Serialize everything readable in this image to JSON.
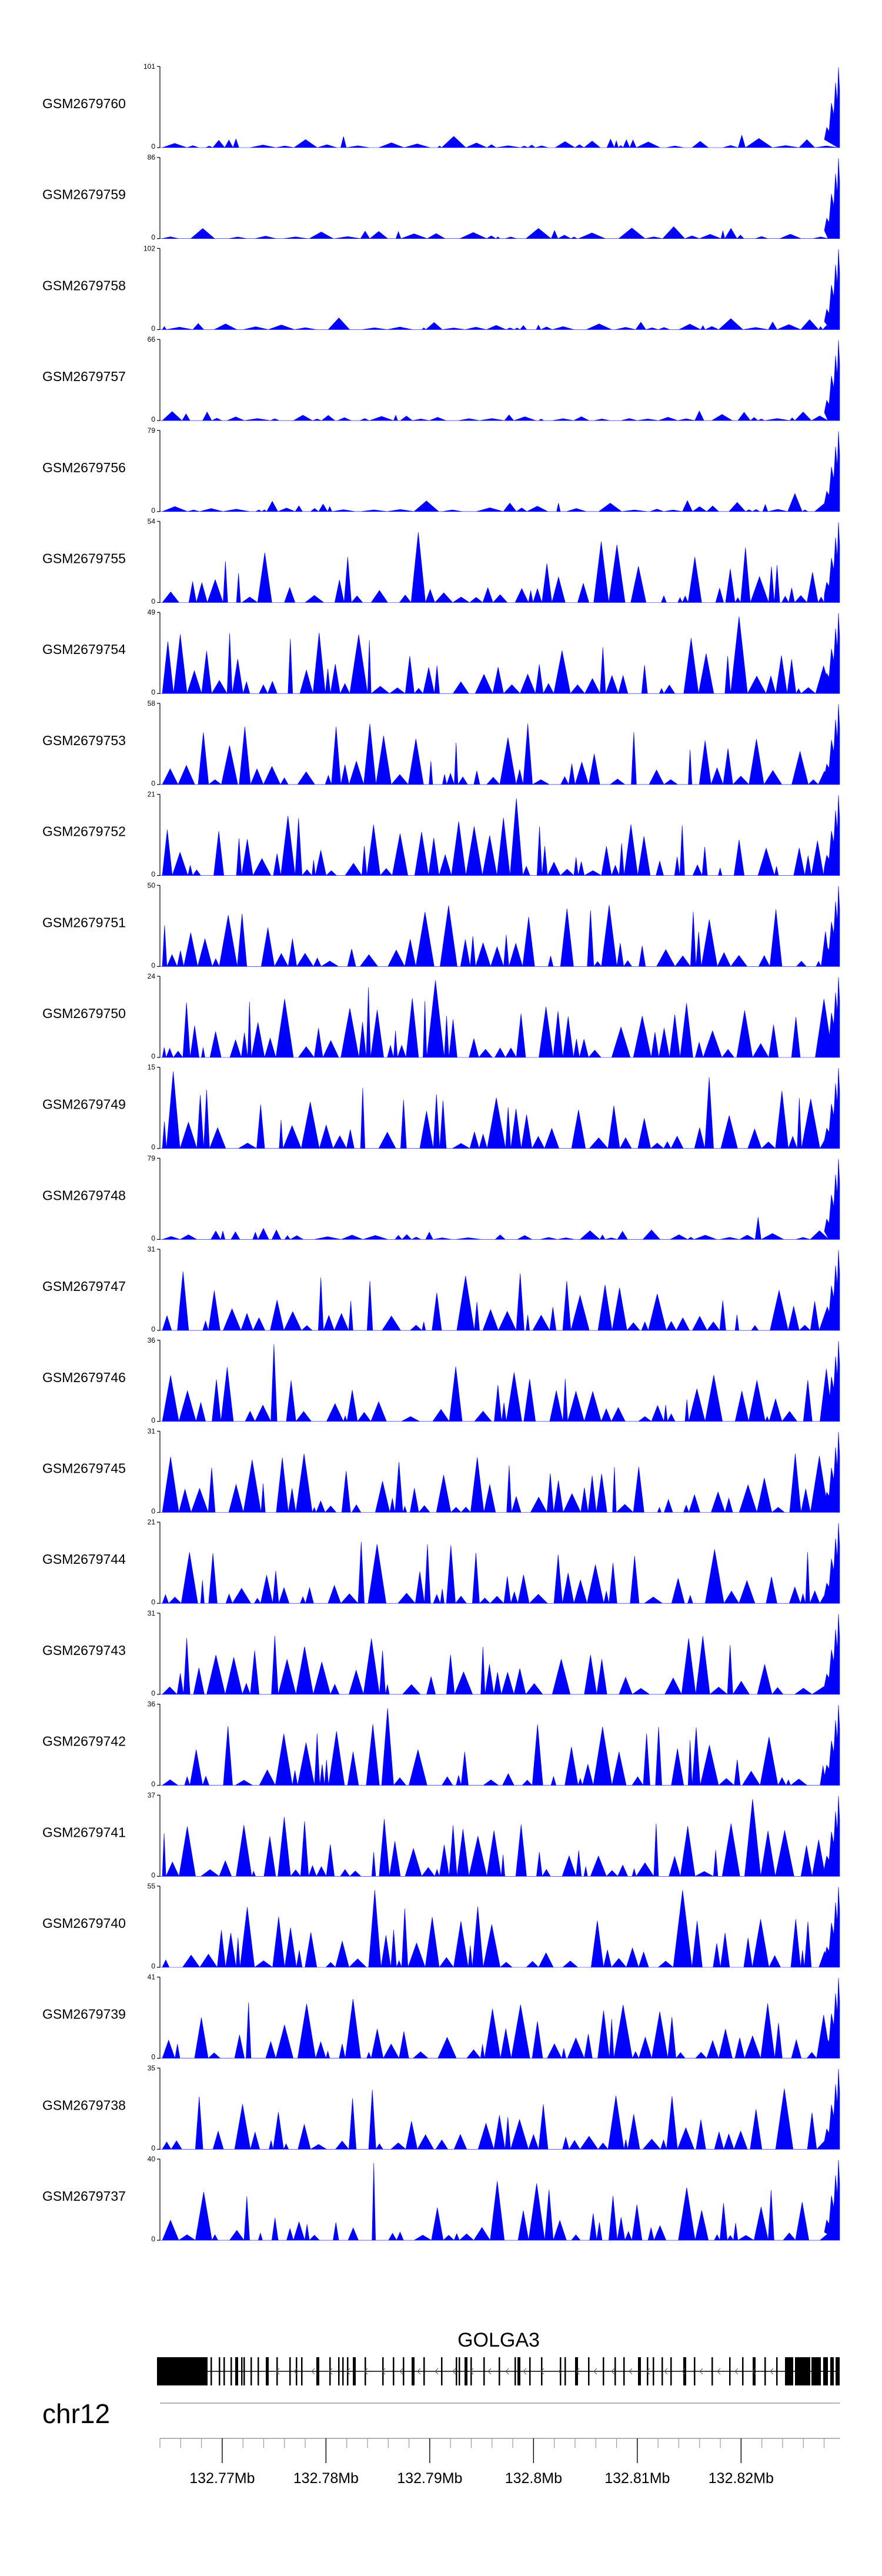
{
  "chart_data": {
    "type": "area",
    "title": "",
    "chromosome": "chr12",
    "gene": "GOLGA3",
    "x_axis": {
      "range_mb": [
        132.764,
        132.8295
      ],
      "tick_labels": [
        "132.77Mb",
        "132.78Mb",
        "132.79Mb",
        "132.8Mb",
        "132.81Mb",
        "132.82Mb"
      ],
      "tick_values_mb": [
        132.77,
        132.78,
        132.79,
        132.8,
        132.81,
        132.82
      ],
      "minor_tick_step_mb": 0.002
    },
    "colors": {
      "signal": "#0000ff",
      "gene_model": "#000000",
      "axis": "#000000",
      "guide": "#999999"
    },
    "tracks": [
      {
        "name": "GSM2679760",
        "ymin_label": "0",
        "ymax_label": "101",
        "ymax": 101
      },
      {
        "name": "GSM2679759",
        "ymin_label": "0",
        "ymax_label": "86",
        "ymax": 86
      },
      {
        "name": "GSM2679758",
        "ymin_label": "0",
        "ymax_label": "102",
        "ymax": 102
      },
      {
        "name": "GSM2679757",
        "ymin_label": "0",
        "ymax_label": "66",
        "ymax": 66
      },
      {
        "name": "GSM2679756",
        "ymin_label": "0",
        "ymax_label": "79",
        "ymax": 79
      },
      {
        "name": "GSM2679755",
        "ymin_label": "0",
        "ymax_label": "54",
        "ymax": 54
      },
      {
        "name": "GSM2679754",
        "ymin_label": "0",
        "ymax_label": "49",
        "ymax": 49
      },
      {
        "name": "GSM2679753",
        "ymin_label": "0",
        "ymax_label": "58",
        "ymax": 58
      },
      {
        "name": "GSM2679752",
        "ymin_label": "0",
        "ymax_label": "21",
        "ymax": 21
      },
      {
        "name": "GSM2679751",
        "ymin_label": "0",
        "ymax_label": "50",
        "ymax": 50
      },
      {
        "name": "GSM2679750",
        "ymin_label": "0",
        "ymax_label": "24",
        "ymax": 24
      },
      {
        "name": "GSM2679749",
        "ymin_label": "0",
        "ymax_label": "15",
        "ymax": 15
      },
      {
        "name": "GSM2679748",
        "ymin_label": "0",
        "ymax_label": "79",
        "ymax": 79
      },
      {
        "name": "GSM2679747",
        "ymin_label": "0",
        "ymax_label": "31",
        "ymax": 31
      },
      {
        "name": "GSM2679746",
        "ymin_label": "0",
        "ymax_label": "36",
        "ymax": 36
      },
      {
        "name": "GSM2679745",
        "ymin_label": "0",
        "ymax_label": "31",
        "ymax": 31
      },
      {
        "name": "GSM2679744",
        "ymin_label": "0",
        "ymax_label": "21",
        "ymax": 21
      },
      {
        "name": "GSM2679743",
        "ymin_label": "0",
        "ymax_label": "31",
        "ymax": 31
      },
      {
        "name": "GSM2679742",
        "ymin_label": "0",
        "ymax_label": "36",
        "ymax": 36
      },
      {
        "name": "GSM2679741",
        "ymin_label": "0",
        "ymax_label": "37",
        "ymax": 37
      },
      {
        "name": "GSM2679740",
        "ymin_label": "0",
        "ymax_label": "55",
        "ymax": 55
      },
      {
        "name": "GSM2679739",
        "ymin_label": "0",
        "ymax_label": "41",
        "ymax": 41
      },
      {
        "name": "GSM2679738",
        "ymin_label": "0",
        "ymax_label": "35",
        "ymax": 35
      },
      {
        "name": "GSM2679737",
        "ymin_label": "0",
        "ymax_label": "40",
        "ymax": 40
      }
    ]
  }
}
